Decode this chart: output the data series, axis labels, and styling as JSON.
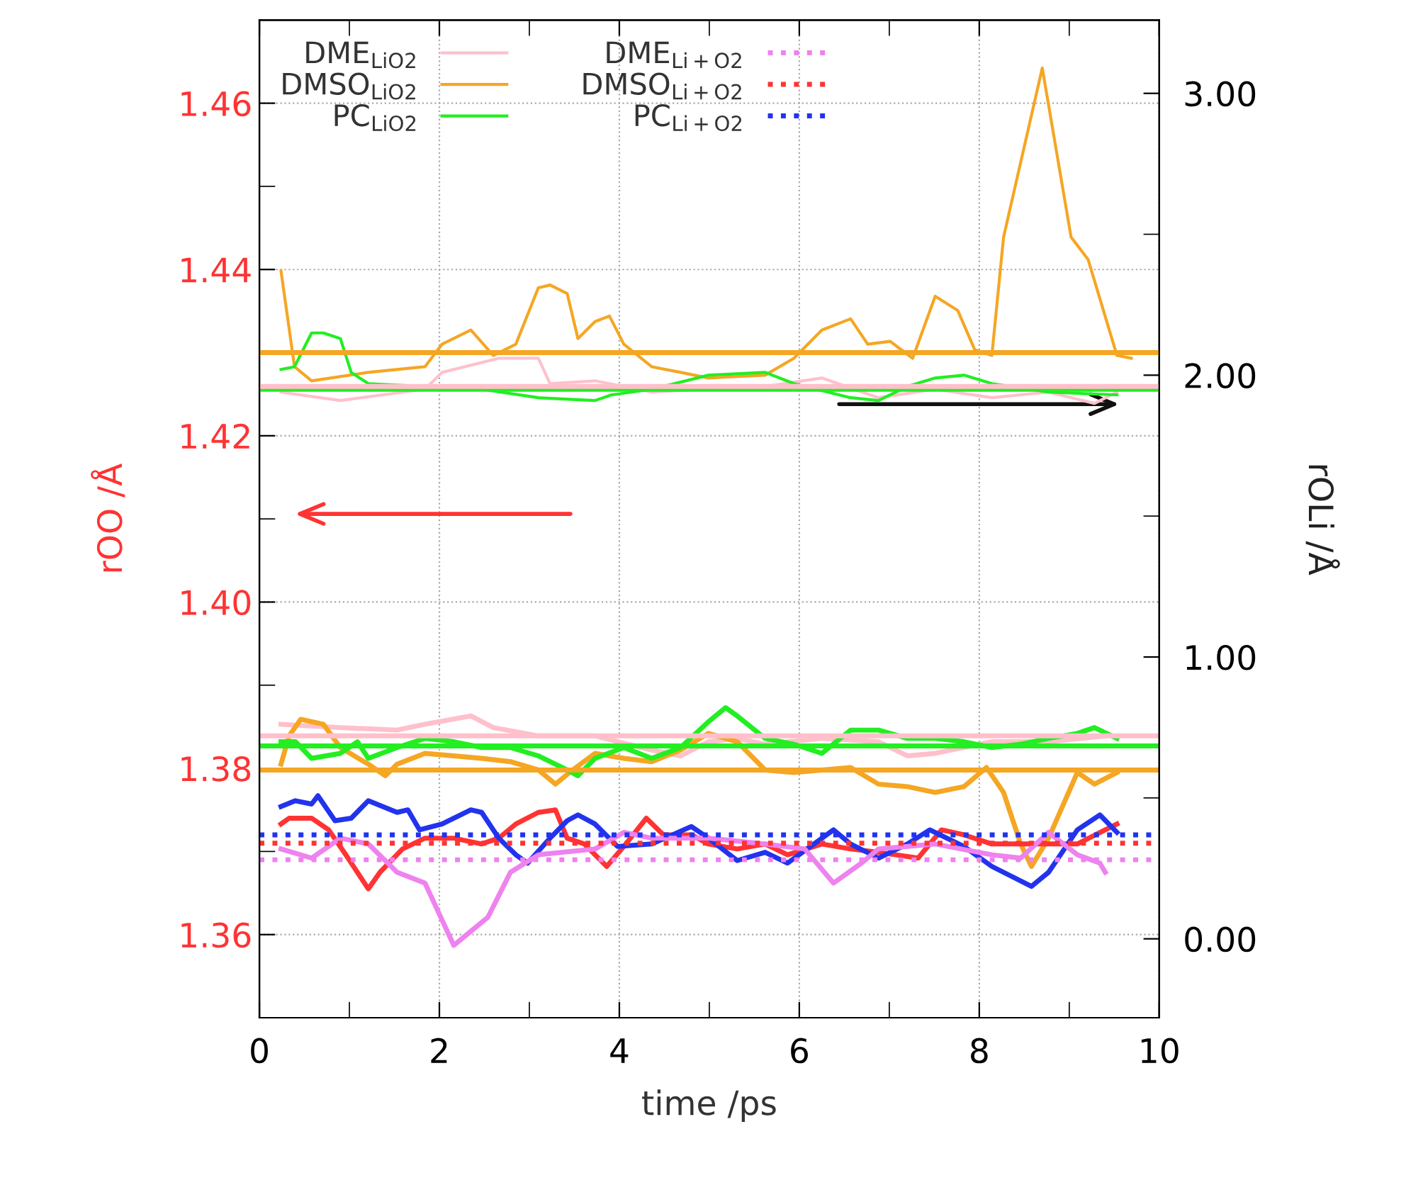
{
  "chart_data": {
    "type": "line",
    "xlabel": "time /ps",
    "ylabel": "rOO /Å",
    "y2label": "rOLi /Å",
    "xlim": [
      0,
      10
    ],
    "xticks": [
      0,
      {
        "value": 1,
        "label": null
      },
      2,
      {
        "value": 3,
        "label": null
      },
      4,
      {
        "value": 5,
        "label": null
      },
      6,
      {
        "value": 7,
        "label": null
      },
      8,
      {
        "value": 9,
        "label": null
      },
      10
    ],
    "ylim": [
      1.35,
      1.47
    ],
    "yticks": [
      {
        "value": 1.35,
        "label": null
      },
      1.36,
      {
        "value": 1.37,
        "label": null
      },
      1.38,
      {
        "value": 1.39,
        "label": null
      },
      {
        "value": 1.4,
        "label": "1.40"
      },
      {
        "value": 1.41,
        "label": null
      },
      1.42,
      {
        "value": 1.43,
        "label": null
      },
      1.44,
      {
        "value": 1.45,
        "label": null
      },
      1.46
    ],
    "y2lim": [
      -0.28,
      3.26
    ],
    "y2ticks": [
      {
        "value": 0,
        "label": "0.00"
      },
      {
        "value": 0.5,
        "label": null
      },
      {
        "value": 1,
        "label": "1.00"
      },
      {
        "value": 1.5,
        "label": null
      },
      {
        "value": 2,
        "label": "2.00"
      },
      {
        "value": 2.5,
        "label": null
      },
      {
        "value": 3,
        "label": "3.00"
      }
    ],
    "grid": true,
    "legend": "top left",
    "line_style": "solid",
    "marker": "none",
    "series": [
      {
        "name": "DME$_{LiO2}$",
        "color": "#ffc0cb",
        "axis": "y2",
        "x": [
          0.24,
          0.9,
          1.84,
          2.03,
          2.66,
          3.1,
          3.23,
          3.73,
          4.36,
          4.99,
          5.62,
          6.25,
          6.88,
          7.51,
          8.14,
          8.77,
          9.28,
          9.53
        ],
        "values": [
          1.94,
          1.91,
          1.95,
          2.01,
          2.06,
          2.06,
          1.97,
          1.98,
          1.94,
          1.95,
          1.96,
          1.99,
          1.92,
          1.95,
          1.92,
          1.94,
          1.9,
          1.94
        ]
      },
      {
        "name": "DMSO$_{LiO2}$",
        "color": "#f5a623",
        "axis": "y2",
        "x": [
          0.24,
          0.39,
          0.58,
          1.21,
          1.84,
          2.03,
          2.35,
          2.6,
          2.85,
          3.1,
          3.23,
          3.42,
          3.54,
          3.73,
          3.89,
          4.05,
          4.36,
          4.68,
          4.99,
          5.62,
          5.94,
          6.25,
          6.57,
          6.76,
          7.01,
          7.26,
          7.51,
          7.76,
          7.95,
          8.14,
          8.27,
          8.7,
          9.02,
          9.21,
          9.53,
          9.69
        ],
        "values": [
          2.37,
          2.03,
          1.98,
          2.01,
          2.03,
          2.11,
          2.16,
          2.07,
          2.11,
          2.31,
          2.32,
          2.29,
          2.13,
          2.19,
          2.21,
          2.11,
          2.03,
          2.01,
          1.99,
          2.0,
          2.06,
          2.16,
          2.2,
          2.11,
          2.12,
          2.06,
          2.28,
          2.23,
          2.09,
          2.07,
          2.49,
          3.09,
          2.49,
          2.41,
          2.07,
          2.06
        ]
      },
      {
        "name": "PC$_{LiO2}$",
        "color": "#22ee22",
        "axis": "y2",
        "x": [
          0.24,
          0.39,
          0.58,
          0.71,
          0.9,
          1.02,
          1.21,
          1.84,
          2.47,
          3.1,
          3.73,
          3.91,
          4.36,
          4.99,
          5.62,
          5.94,
          6.57,
          6.88,
          7.2,
          7.51,
          7.83,
          8.14,
          8.77,
          9.53
        ],
        "values": [
          2.02,
          2.03,
          2.15,
          2.15,
          2.13,
          2.01,
          1.97,
          1.96,
          1.95,
          1.92,
          1.91,
          1.93,
          1.95,
          2.0,
          2.01,
          1.97,
          1.92,
          1.91,
          1.96,
          1.99,
          2.0,
          1.97,
          1.94,
          1.93
        ]
      },
      {
        "color": "#f5a623",
        "axis": "y2",
        "x": [
          0,
          10
        ],
        "values": [
          2.08,
          2.08
        ]
      },
      {
        "color": "#22ee22",
        "axis": "y2",
        "x": [
          0,
          10
        ],
        "values": [
          1.95,
          1.95
        ]
      },
      {
        "color": "#ffc0cb",
        "axis": "y2",
        "x": [
          0,
          10
        ],
        "values": [
          1.96,
          1.96
        ]
      },
      {
        "color": "#ffc0cb",
        "x": [
          0.24,
          0.9,
          1.53,
          1.84,
          2.35,
          2.6,
          3.1,
          3.73,
          4.36,
          4.68,
          4.99,
          5.31,
          5.62,
          6.25,
          6.88,
          7.2,
          7.51,
          8.14,
          8.77,
          9.4
        ],
        "values": [
          1.3853,
          1.3849,
          1.3846,
          1.3853,
          1.3863,
          1.3849,
          1.3839,
          1.3839,
          1.3822,
          1.3815,
          1.3832,
          1.3836,
          1.3829,
          1.3836,
          1.3832,
          1.3815,
          1.3818,
          1.3832,
          1.3832,
          1.3839
        ]
      },
      {
        "color": "#f5a623",
        "x": [
          0.24,
          0.33,
          0.46,
          0.71,
          0.9,
          1.21,
          1.4,
          1.53,
          1.84,
          2.16,
          2.47,
          2.79,
          3.1,
          3.29,
          3.48,
          3.73,
          4.05,
          4.36,
          4.68,
          4.99,
          5.31,
          5.62,
          5.94,
          6.25,
          6.57,
          6.88,
          7.2,
          7.51,
          7.83,
          8.08,
          8.27,
          8.46,
          8.58,
          8.77,
          9.09,
          9.28,
          9.53
        ],
        "values": [
          1.3805,
          1.3839,
          1.3859,
          1.3853,
          1.3825,
          1.3805,
          1.3791,
          1.3805,
          1.3818,
          1.3815,
          1.3812,
          1.3808,
          1.3798,
          1.3781,
          1.3798,
          1.3818,
          1.3812,
          1.3808,
          1.3822,
          1.3842,
          1.3832,
          1.3798,
          1.3795,
          1.3798,
          1.3801,
          1.3781,
          1.3778,
          1.3771,
          1.3778,
          1.3801,
          1.3771,
          1.3709,
          1.3682,
          1.3716,
          1.3795,
          1.3781,
          1.3795
        ]
      },
      {
        "color": "#22ee22",
        "x": [
          0.24,
          0.4,
          0.58,
          0.9,
          1.09,
          1.21,
          1.53,
          1.84,
          2.16,
          2.47,
          2.79,
          3.1,
          3.42,
          3.54,
          3.73,
          4.05,
          4.36,
          4.68,
          4.99,
          5.18,
          5.31,
          5.62,
          5.94,
          6.25,
          6.57,
          6.88,
          7.2,
          7.51,
          7.83,
          8.14,
          8.46,
          8.77,
          9.09,
          9.28,
          9.53
        ],
        "values": [
          1.3832,
          1.3832,
          1.3812,
          1.3818,
          1.3832,
          1.3812,
          1.3825,
          1.3836,
          1.3832,
          1.3825,
          1.3825,
          1.3815,
          1.3798,
          1.3791,
          1.3812,
          1.3825,
          1.3812,
          1.3825,
          1.3856,
          1.3873,
          1.3863,
          1.3836,
          1.3829,
          1.3818,
          1.3846,
          1.3846,
          1.3836,
          1.3836,
          1.3832,
          1.3825,
          1.3829,
          1.3836,
          1.3842,
          1.3849,
          1.3836
        ]
      },
      {
        "color": "#ffc0cb",
        "x": [
          0,
          10
        ],
        "values": [
          1.3839,
          1.3839
        ]
      },
      {
        "color": "#22ee22",
        "x": [
          0,
          10
        ],
        "values": [
          1.3827,
          1.3827
        ]
      },
      {
        "color": "#f5a623",
        "x": [
          0,
          10
        ],
        "values": [
          1.3798,
          1.3798
        ]
      },
      {
        "color": "#ff3333",
        "x": [
          0.24,
          0.33,
          0.58,
          0.77,
          0.96,
          1.21,
          1.34,
          1.59,
          1.84,
          2.16,
          2.47,
          2.66,
          2.85,
          3.1,
          3.29,
          3.42,
          3.61,
          3.86,
          4.05,
          4.3,
          4.49,
          4.8,
          4.99,
          5.31,
          5.62,
          5.87,
          6.25,
          6.57,
          6.88,
          7.32,
          7.58,
          7.83,
          8.14,
          8.46,
          8.77,
          9.09,
          9.4,
          9.53
        ],
        "values": [
          1.3733,
          1.374,
          1.374,
          1.3726,
          1.3696,
          1.3655,
          1.3675,
          1.3703,
          1.3716,
          1.3716,
          1.3709,
          1.3716,
          1.3733,
          1.3747,
          1.375,
          1.3716,
          1.3709,
          1.3682,
          1.3706,
          1.374,
          1.372,
          1.372,
          1.3709,
          1.3703,
          1.3709,
          1.3696,
          1.3709,
          1.3703,
          1.3699,
          1.3692,
          1.3726,
          1.372,
          1.3709,
          1.3709,
          1.3709,
          1.3709,
          1.3726,
          1.3733
        ]
      },
      {
        "color": "#2233ee",
        "x": [
          0.24,
          0.4,
          0.58,
          0.65,
          0.84,
          1.02,
          1.21,
          1.53,
          1.65,
          1.78,
          2.03,
          2.35,
          2.47,
          2.66,
          2.85,
          2.98,
          3.23,
          3.42,
          3.54,
          3.73,
          3.98,
          4.36,
          4.8,
          4.99,
          5.31,
          5.62,
          5.87,
          6.38,
          6.57,
          6.88,
          7.2,
          7.45,
          7.83,
          8.14,
          8.58,
          8.77,
          9.09,
          9.34,
          9.53
        ],
        "values": [
          1.3754,
          1.3761,
          1.3757,
          1.3767,
          1.3737,
          1.374,
          1.3761,
          1.3747,
          1.375,
          1.3726,
          1.3733,
          1.375,
          1.3747,
          1.3716,
          1.3696,
          1.3686,
          1.3716,
          1.3737,
          1.3744,
          1.3733,
          1.3706,
          1.3709,
          1.373,
          1.3716,
          1.3689,
          1.3699,
          1.3686,
          1.3726,
          1.3709,
          1.3692,
          1.3709,
          1.3726,
          1.3706,
          1.3682,
          1.3658,
          1.3675,
          1.3726,
          1.3744,
          1.3723
        ]
      },
      {
        "color": "#ee82ee",
        "x": [
          0.24,
          0.58,
          0.9,
          1.21,
          1.53,
          1.84,
          2.16,
          2.35,
          2.54,
          2.79,
          3.1,
          3.73,
          4.05,
          4.36,
          4.99,
          5.62,
          6.06,
          6.38,
          6.69,
          6.88,
          7.51,
          8.14,
          8.46,
          8.77,
          9.09,
          9.34,
          9.4
        ],
        "values": [
          1.3703,
          1.3692,
          1.3716,
          1.3709,
          1.3675,
          1.3662,
          1.3587,
          1.3604,
          1.3621,
          1.3675,
          1.3696,
          1.3703,
          1.3723,
          1.3716,
          1.3716,
          1.3709,
          1.3703,
          1.3662,
          1.3686,
          1.3703,
          1.3709,
          1.3696,
          1.3692,
          1.3723,
          1.3696,
          1.3686,
          1.3675
        ]
      },
      {
        "name": "DME$_{Li+O2}$",
        "color": "#ee82ee",
        "line_style": "dotted",
        "x": [
          0,
          10
        ],
        "values": [
          1.369,
          1.369
        ]
      },
      {
        "name": "DMSO$_{Li+O2}$",
        "color": "#ff3333",
        "line_style": "dotted",
        "x": [
          0,
          10
        ],
        "values": [
          1.371,
          1.371
        ]
      },
      {
        "name": "PC$_{Li+O2}$",
        "color": "#2233ee",
        "line_style": "dotted",
        "x": [
          0,
          10
        ],
        "values": [
          1.372,
          1.372
        ]
      }
    ]
  }
}
